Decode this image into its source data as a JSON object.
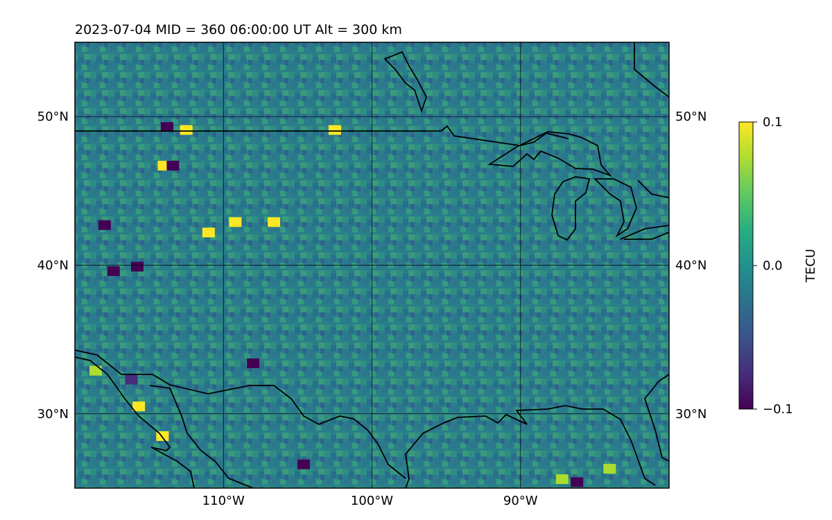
{
  "title": "2023-07-04  MID = 360    06:00:00  UT  Alt = 300 km",
  "map": {
    "lon_range": [
      -120,
      -80
    ],
    "lat_range": [
      25,
      55
    ],
    "gridlines": true,
    "lon_ticks": [
      {
        "value": -110,
        "label": "110°W"
      },
      {
        "value": -100,
        "label": "100°W"
      },
      {
        "value": -90,
        "label": "90°W"
      }
    ],
    "lat_ticks": [
      {
        "value": 30,
        "label": "30°N"
      },
      {
        "value": 40,
        "label": "40°N"
      },
      {
        "value": 50,
        "label": "50°N"
      }
    ]
  },
  "colorbar": {
    "label": "TECU",
    "colormap": "viridis",
    "vmin": -0.1,
    "vmax": 0.1,
    "ticks": [
      {
        "value": 0.1,
        "label": "0.1"
      },
      {
        "value": 0.0,
        "label": "0.0"
      },
      {
        "value": -0.1,
        "label": "−0.1"
      }
    ]
  },
  "chart_data": {
    "type": "heatmap",
    "title": "2023-07-04  MID = 360    06:00:00  UT  Alt = 300 km",
    "xlabel": "",
    "ylabel": "",
    "x_range": [
      -120,
      -80
    ],
    "y_range": [
      25,
      55
    ],
    "z_label": "TECU",
    "z_range": [
      -0.1,
      0.1
    ],
    "background_value": 0.0,
    "hotspots": [
      {
        "lon": -112.5,
        "lat": 49.1,
        "value": 0.1
      },
      {
        "lon": -102.5,
        "lat": 49.1,
        "value": 0.1
      },
      {
        "lon": -114.0,
        "lat": 46.7,
        "value": 0.1
      },
      {
        "lon": -111.0,
        "lat": 42.2,
        "value": 0.1
      },
      {
        "lon": -109.2,
        "lat": 42.9,
        "value": 0.1
      },
      {
        "lon": -106.6,
        "lat": 42.9,
        "value": 0.09
      },
      {
        "lon": -115.7,
        "lat": 30.5,
        "value": 0.1
      },
      {
        "lon": -114.1,
        "lat": 28.5,
        "value": 0.09
      },
      {
        "lon": -118.6,
        "lat": 32.9,
        "value": 0.08
      },
      {
        "lon": -84.0,
        "lat": 26.3,
        "value": 0.08
      },
      {
        "lon": -87.2,
        "lat": 25.6,
        "value": 0.07
      },
      {
        "lon": -113.8,
        "lat": 49.3,
        "value": -0.1
      },
      {
        "lon": -113.4,
        "lat": 46.7,
        "value": -0.1
      },
      {
        "lon": -118.0,
        "lat": 42.7,
        "value": -0.1
      },
      {
        "lon": -115.8,
        "lat": 39.9,
        "value": -0.09
      },
      {
        "lon": -117.4,
        "lat": 39.6,
        "value": -0.1
      },
      {
        "lon": -104.6,
        "lat": 26.6,
        "value": -0.1
      },
      {
        "lon": -86.2,
        "lat": 25.4,
        "value": -0.1
      },
      {
        "lon": -108.0,
        "lat": 33.4,
        "value": -0.09
      },
      {
        "lon": -116.2,
        "lat": 32.3,
        "value": -0.08
      }
    ]
  }
}
